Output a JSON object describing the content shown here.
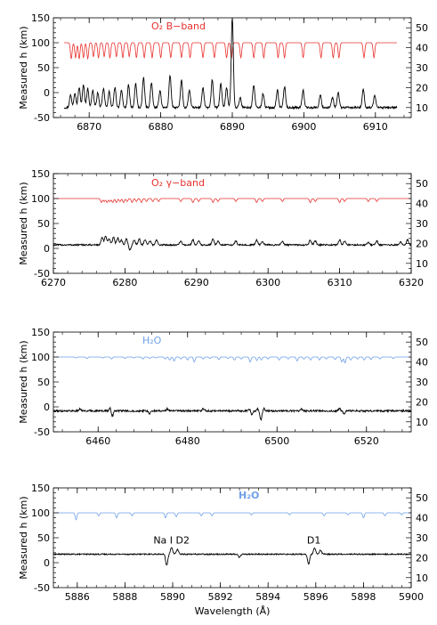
{
  "chart_data": [
    {
      "type": "line",
      "xlabel": "",
      "ylabel": "Measured h (km)",
      "xlim": [
        6865,
        6915
      ],
      "ylim": [
        -50,
        150
      ],
      "y2lim": [
        5,
        55
      ],
      "xticks": [
        6870,
        6880,
        6890,
        6900,
        6910
      ],
      "yticks": [
        -50,
        0,
        50,
        100,
        150
      ],
      "y2ticks": [
        10,
        20,
        30,
        40,
        50
      ],
      "annotation": {
        "text": "O₂ B−band",
        "color": "#e8312e"
      },
      "reference": {
        "color": "#e8312e",
        "baseline": 100,
        "xrange": [
          6866.5,
          6913
        ],
        "lines": [
          [
            6867.5,
            32
          ],
          [
            6868.1,
            30
          ],
          [
            6868.6,
            32
          ],
          [
            6869.2,
            30
          ],
          [
            6869.8,
            32
          ],
          [
            6870.6,
            28
          ],
          [
            6871.3,
            30
          ],
          [
            6872.1,
            28
          ],
          [
            6872.9,
            30
          ],
          [
            6873.8,
            28
          ],
          [
            6874.7,
            30
          ],
          [
            6875.6,
            28
          ],
          [
            6876.6,
            30
          ],
          [
            6877.7,
            30
          ],
          [
            6878.8,
            30
          ],
          [
            6880.0,
            30
          ],
          [
            6881.4,
            30
          ],
          [
            6882.9,
            30
          ],
          [
            6884.1,
            30
          ],
          [
            6885.9,
            30
          ],
          [
            6887.5,
            30
          ],
          [
            6889.2,
            30
          ],
          [
            6889.9,
            30
          ],
          [
            6891.2,
            30
          ],
          [
            6893.0,
            30
          ],
          [
            6894.4,
            30
          ],
          [
            6896.4,
            30
          ],
          [
            6897.3,
            30
          ],
          [
            6899.9,
            30
          ],
          [
            6902.4,
            30
          ],
          [
            6904.1,
            30
          ],
          [
            6904.9,
            30
          ],
          [
            6908.4,
            30
          ],
          [
            6909.8,
            30
          ]
        ]
      },
      "series": [
        {
          "color": "#000000",
          "baseline": -30,
          "noise": 2,
          "xrange": [
            6866.5,
            6913
          ],
          "features": [
            [
              6867.4,
              25
            ],
            [
              6868.0,
              30
            ],
            [
              6868.6,
              40
            ],
            [
              6869.2,
              45
            ],
            [
              6869.8,
              38
            ],
            [
              6870.5,
              35
            ],
            [
              6871.2,
              30
            ],
            [
              6872.0,
              38
            ],
            [
              6872.8,
              32
            ],
            [
              6873.6,
              40
            ],
            [
              6874.5,
              35
            ],
            [
              6875.5,
              45
            ],
            [
              6876.5,
              48
            ],
            [
              6877.6,
              60
            ],
            [
              6878.7,
              50
            ],
            [
              6879.9,
              35
            ],
            [
              6881.3,
              65
            ],
            [
              6882.9,
              55
            ],
            [
              6884.0,
              35
            ],
            [
              6885.9,
              40
            ],
            [
              6887.2,
              55
            ],
            [
              6888.4,
              48
            ],
            [
              6889.2,
              40
            ],
            [
              6890.0,
              180
            ],
            [
              6891.1,
              20
            ],
            [
              6893.0,
              45
            ],
            [
              6894.3,
              28
            ],
            [
              6896.3,
              35
            ],
            [
              6897.3,
              42
            ],
            [
              6899.9,
              35
            ],
            [
              6902.3,
              25
            ],
            [
              6904.0,
              20
            ],
            [
              6904.8,
              30
            ],
            [
              6908.3,
              38
            ],
            [
              6909.9,
              25
            ]
          ]
        }
      ]
    },
    {
      "type": "line",
      "xlabel": "",
      "ylabel": "Measured h (km)",
      "xlim": [
        6270,
        6320
      ],
      "ylim": [
        -50,
        150
      ],
      "y2lim": [
        5,
        55
      ],
      "xticks": [
        6270,
        6280,
        6290,
        6300,
        6310,
        6320
      ],
      "yticks": [
        -50,
        0,
        50,
        100,
        150
      ],
      "y2ticks": [
        10,
        20,
        30,
        40,
        50
      ],
      "annotation": {
        "text": "O₂ γ−band",
        "color": "#e8312e"
      },
      "reference": {
        "color": "#e8312e",
        "baseline": 100,
        "xrange": [
          6270,
          6320
        ],
        "lines": [
          [
            6276.7,
            8
          ],
          [
            6277.1,
            6
          ],
          [
            6277.5,
            8
          ],
          [
            6277.9,
            6
          ],
          [
            6278.3,
            8
          ],
          [
            6278.8,
            8
          ],
          [
            6279.3,
            6
          ],
          [
            6279.8,
            8
          ],
          [
            6280.3,
            6
          ],
          [
            6281.0,
            8
          ],
          [
            6281.6,
            6
          ],
          [
            6282.3,
            8
          ],
          [
            6283.0,
            6
          ],
          [
            6283.9,
            6
          ],
          [
            6284.7,
            6
          ],
          [
            6287.8,
            6
          ],
          [
            6289.5,
            8
          ],
          [
            6290.3,
            6
          ],
          [
            6292.3,
            8
          ],
          [
            6293.0,
            6
          ],
          [
            6295.5,
            6
          ],
          [
            6298.4,
            8
          ],
          [
            6299.2,
            6
          ],
          [
            6302.0,
            6
          ],
          [
            6305.9,
            8
          ],
          [
            6306.6,
            6
          ],
          [
            6310.0,
            8
          ],
          [
            6310.7,
            6
          ],
          [
            6314.0,
            6
          ],
          [
            6315.2,
            6
          ]
        ]
      },
      "series": [
        {
          "color": "#000000",
          "baseline": 7,
          "noise": 1.5,
          "xrange": [
            6270,
            6320
          ],
          "features": [
            [
              6276.8,
              15
            ],
            [
              6277.3,
              18
            ],
            [
              6277.8,
              12
            ],
            [
              6278.4,
              16
            ],
            [
              6279.0,
              14
            ],
            [
              6279.5,
              10
            ],
            [
              6280.2,
              12
            ],
            [
              6280.7,
              -10
            ],
            [
              6281.3,
              10
            ],
            [
              6282.0,
              12
            ],
            [
              6282.8,
              10
            ],
            [
              6283.5,
              8
            ],
            [
              6284.4,
              10
            ],
            [
              6287.8,
              8
            ],
            [
              6289.5,
              10
            ],
            [
              6290.3,
              8
            ],
            [
              6292.3,
              12
            ],
            [
              6293.0,
              8
            ],
            [
              6295.5,
              8
            ],
            [
              6298.4,
              10
            ],
            [
              6299.2,
              8
            ],
            [
              6302.0,
              8
            ],
            [
              6305.9,
              10
            ],
            [
              6306.6,
              8
            ],
            [
              6310.0,
              10
            ],
            [
              6310.7,
              8
            ],
            [
              6314.0,
              6
            ],
            [
              6315.2,
              8
            ],
            [
              6318.5,
              6
            ],
            [
              6319.5,
              10
            ]
          ]
        }
      ]
    },
    {
      "type": "line",
      "xlabel": "",
      "ylabel": "Measured h (km)",
      "xlim": [
        6450,
        6530
      ],
      "ylim": [
        -50,
        150
      ],
      "y2lim": [
        5,
        55
      ],
      "xticks": [
        6460,
        6480,
        6500,
        6520
      ],
      "yticks": [
        -50,
        0,
        50,
        100,
        150
      ],
      "y2ticks": [
        10,
        20,
        30,
        40,
        50
      ],
      "annotation": {
        "text": "H₂O",
        "color": "#6fa0e8"
      },
      "reference": {
        "color": "#6fa0e8",
        "baseline": 100,
        "xrange": [
          6450,
          6530
        ],
        "lines": [
          [
            6455.0,
            2
          ],
          [
            6457.5,
            3
          ],
          [
            6461.0,
            2
          ],
          [
            6463.0,
            4
          ],
          [
            6466.0,
            3
          ],
          [
            6468.0,
            2
          ],
          [
            6470.0,
            4
          ],
          [
            6471.5,
            3
          ],
          [
            6473.0,
            2
          ],
          [
            6475.0,
            4
          ],
          [
            6476.0,
            6
          ],
          [
            6477.0,
            8
          ],
          [
            6478.5,
            4
          ],
          [
            6480.0,
            6
          ],
          [
            6481.5,
            10
          ],
          [
            6483.5,
            4
          ],
          [
            6485.0,
            3
          ],
          [
            6487.0,
            5
          ],
          [
            6489.0,
            3
          ],
          [
            6490.5,
            6
          ],
          [
            6492.0,
            4
          ],
          [
            6494.0,
            10
          ],
          [
            6495.5,
            7
          ],
          [
            6496.5,
            6
          ],
          [
            6498.0,
            4
          ],
          [
            6500.5,
            6
          ],
          [
            6502.5,
            4
          ],
          [
            6504.5,
            8
          ],
          [
            6506.0,
            4
          ],
          [
            6507.5,
            6
          ],
          [
            6509.5,
            6
          ],
          [
            6511.0,
            4
          ],
          [
            6513.0,
            5
          ],
          [
            6514.5,
            10
          ],
          [
            6515.2,
            12
          ],
          [
            6516.5,
            6
          ],
          [
            6518.0,
            4
          ],
          [
            6519.5,
            6
          ],
          [
            6521.0,
            5
          ],
          [
            6523.0,
            4
          ],
          [
            6526.0,
            3
          ]
        ]
      },
      "series": [
        {
          "color": "#000000",
          "baseline": -8,
          "noise": 1.8,
          "xrange": [
            6450,
            6530
          ],
          "features": [
            [
              6456.0,
              4
            ],
            [
              6462.8,
              10
            ],
            [
              6463.1,
              -14
            ],
            [
              6471.5,
              -6
            ],
            [
              6475.5,
              4
            ],
            [
              6483.5,
              4
            ],
            [
              6494.0,
              6
            ],
            [
              6494.3,
              -10
            ],
            [
              6495.8,
              4
            ],
            [
              6496.4,
              -18
            ],
            [
              6497.0,
              5
            ],
            [
              6505.5,
              4
            ],
            [
              6514.0,
              4
            ],
            [
              6515.0,
              -6
            ]
          ]
        }
      ]
    },
    {
      "type": "line",
      "xlabel": "Wavelength (Å)",
      "ylabel": "Measured h (km)",
      "xlim": [
        5885,
        5900
      ],
      "ylim": [
        -50,
        150
      ],
      "y2lim": [
        5,
        55
      ],
      "xticks": [
        5886,
        5888,
        5890,
        5892,
        5894,
        5896,
        5898,
        5900
      ],
      "yticks": [
        -50,
        0,
        50,
        100,
        150
      ],
      "y2ticks": [
        10,
        20,
        30,
        40,
        50
      ],
      "annotation": {
        "text": "H₂O",
        "color": "#6fa0e8"
      },
      "labels": [
        {
          "text": "Na I D2",
          "x": 5889.95
        },
        {
          "text": "D1",
          "x": 5895.92
        }
      ],
      "reference": {
        "color": "#6fa0e8",
        "baseline": 100,
        "xrange": [
          5885,
          5900
        ],
        "lines": [
          [
            5885.95,
            14
          ],
          [
            5886.9,
            6
          ],
          [
            5887.65,
            10
          ],
          [
            5888.3,
            6
          ],
          [
            5889.7,
            10
          ],
          [
            5890.15,
            8
          ],
          [
            5891.2,
            6
          ],
          [
            5891.65,
            6
          ],
          [
            5893.3,
            4
          ],
          [
            5894.9,
            4
          ],
          [
            5896.35,
            6
          ],
          [
            5897.35,
            4
          ],
          [
            5898.0,
            10
          ],
          [
            5898.9,
            6
          ],
          [
            5899.6,
            4
          ]
        ]
      },
      "series": [
        {
          "color": "#000000",
          "baseline": 17,
          "noise": 1.2,
          "xrange": [
            5885,
            5900
          ],
          "features": [
            [
              5889.75,
              -22
            ],
            [
              5889.95,
              14
            ],
            [
              5890.2,
              10
            ],
            [
              5892.8,
              -6
            ],
            [
              5895.7,
              -20
            ],
            [
              5895.95,
              12
            ],
            [
              5896.2,
              8
            ]
          ]
        }
      ]
    }
  ]
}
